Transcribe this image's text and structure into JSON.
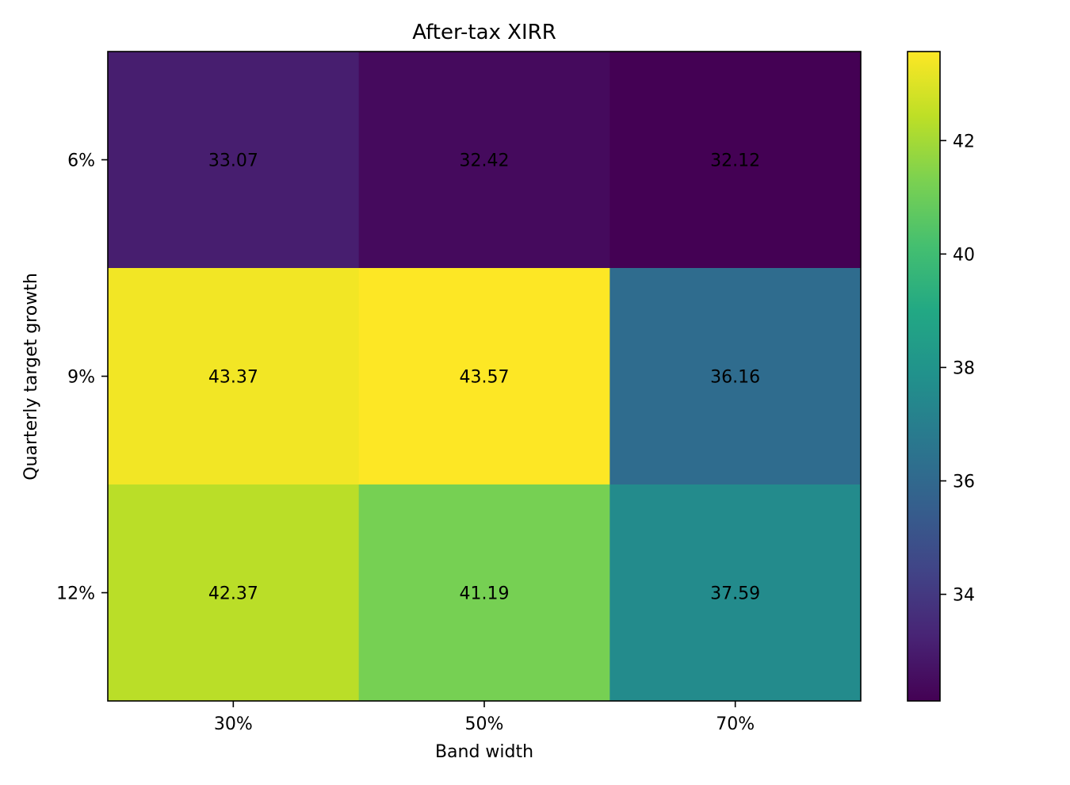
{
  "chart_data": {
    "type": "heatmap",
    "title": "After-tax XIRR",
    "xlabel": "Band width",
    "ylabel": "Quarterly target growth",
    "x_categories": [
      "30%",
      "50%",
      "70%"
    ],
    "y_categories": [
      "6%",
      "9%",
      "12%"
    ],
    "values": [
      [
        33.07,
        32.42,
        32.12
      ],
      [
        43.37,
        43.57,
        36.16
      ],
      [
        42.37,
        41.19,
        37.59
      ]
    ],
    "value_labels": [
      [
        "33.07",
        "32.42",
        "32.12"
      ],
      [
        "43.37",
        "43.57",
        "36.16"
      ],
      [
        "42.37",
        "41.19",
        "37.59"
      ]
    ],
    "colormap": "viridis",
    "vmin": 32.12,
    "vmax": 43.57,
    "colorbar": {
      "ticks": [
        34,
        36,
        38,
        40,
        42
      ],
      "tick_labels": [
        "34",
        "36",
        "38",
        "40",
        "42"
      ]
    },
    "grid": false
  }
}
